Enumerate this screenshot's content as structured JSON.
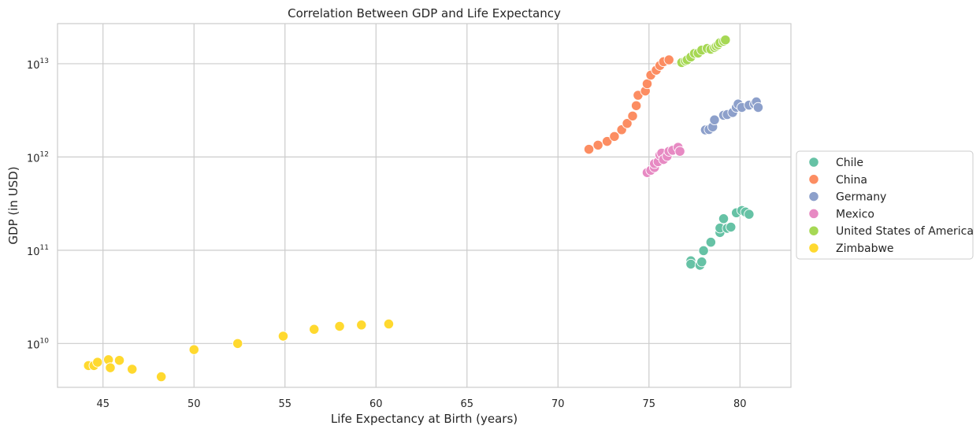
{
  "chart_data": {
    "type": "scatter",
    "title": "Correlation Between GDP and Life Expectancy",
    "xlabel": "Life Expectancy at Birth (years)",
    "ylabel": "GDP (in USD)",
    "xlim": [
      42.5,
      82.8
    ],
    "ylim_log10": [
      9.53,
      13.43
    ],
    "y_scale": "log",
    "grid": true,
    "legend_position": "right",
    "x_ticks": [
      45,
      50,
      55,
      60,
      65,
      70,
      75,
      80
    ],
    "y_ticks": [
      {
        "base": "10",
        "exp": "10",
        "value": 10
      },
      {
        "base": "10",
        "exp": "11",
        "value": 11
      },
      {
        "base": "10",
        "exp": "12",
        "value": 12
      },
      {
        "base": "10",
        "exp": "13",
        "value": 13
      }
    ],
    "series": [
      {
        "name": "Chile",
        "color": "#66c2a5",
        "points": [
          [
            77.3,
            77000000000.0
          ],
          [
            77.3,
            71000000000.0
          ],
          [
            77.8,
            69000000000.0
          ],
          [
            77.9,
            75000000000.0
          ],
          [
            78.0,
            99000000000.0
          ],
          [
            78.4,
            122000000000.0
          ],
          [
            78.9,
            155000000000.0
          ],
          [
            78.9,
            173000000000.0
          ],
          [
            79.1,
            218000000000.0
          ],
          [
            79.3,
            172000000000.0
          ],
          [
            79.5,
            177000000000.0
          ],
          [
            79.8,
            252000000000.0
          ],
          [
            80.1,
            267000000000.0
          ],
          [
            80.3,
            257000000000.0
          ],
          [
            80.5,
            243000000000.0
          ]
        ]
      },
      {
        "name": "China",
        "color": "#fc8d62",
        "points": [
          [
            71.7,
            1210000000000.0
          ],
          [
            72.2,
            1340000000000.0
          ],
          [
            72.7,
            1470000000000.0
          ],
          [
            73.1,
            1660000000000.0
          ],
          [
            73.5,
            1960000000000.0
          ],
          [
            73.8,
            2290000000000.0
          ],
          [
            74.1,
            2750000000000.0
          ],
          [
            74.3,
            3550000000000.0
          ],
          [
            74.4,
            4590000000000.0
          ],
          [
            74.8,
            5100000000000.0
          ],
          [
            74.9,
            6090000000000.0
          ],
          [
            75.1,
            7550000000000.0
          ],
          [
            75.4,
            8530000000000.0
          ],
          [
            75.6,
            9570000000000.0
          ],
          [
            75.8,
            10500000000000.0
          ],
          [
            76.1,
            11000000000000.0
          ]
        ]
      },
      {
        "name": "Germany",
        "color": "#8da0cb",
        "points": [
          [
            78.1,
            1950000000000.0
          ],
          [
            78.3,
            1970000000000.0
          ],
          [
            78.5,
            2100000000000.0
          ],
          [
            78.6,
            2500000000000.0
          ],
          [
            79.1,
            2800000000000.0
          ],
          [
            79.3,
            2850000000000.0
          ],
          [
            79.6,
            3000000000000.0
          ],
          [
            79.8,
            3400000000000.0
          ],
          [
            79.9,
            3700000000000.0
          ],
          [
            80.1,
            3400000000000.0
          ],
          [
            80.5,
            3600000000000.0
          ],
          [
            80.8,
            3700000000000.0
          ],
          [
            80.9,
            3900000000000.0
          ],
          [
            81.0,
            3400000000000.0
          ]
        ]
      },
      {
        "name": "Mexico",
        "color": "#e78ac3",
        "points": [
          [
            74.9,
            680000000000.0
          ],
          [
            75.1,
            720000000000.0
          ],
          [
            75.3,
            770000000000.0
          ],
          [
            75.3,
            850000000000.0
          ],
          [
            75.5,
            890000000000.0
          ],
          [
            75.6,
            1050000000000.0
          ],
          [
            75.7,
            1100000000000.0
          ],
          [
            75.8,
            940000000000.0
          ],
          [
            76.0,
            1020000000000.0
          ],
          [
            76.1,
            1150000000000.0
          ],
          [
            76.3,
            1180000000000.0
          ],
          [
            76.6,
            1270000000000.0
          ],
          [
            76.7,
            1150000000000.0
          ]
        ]
      },
      {
        "name": "United States of America",
        "color": "#a6d854",
        "points": [
          [
            76.8,
            10300000000000.0
          ],
          [
            77.0,
            10700000000000.0
          ],
          [
            77.1,
            11000000000000.0
          ],
          [
            77.3,
            11800000000000.0
          ],
          [
            77.5,
            12900000000000.0
          ],
          [
            77.7,
            13000000000000.0
          ],
          [
            77.9,
            14000000000000.0
          ],
          [
            78.2,
            14600000000000.0
          ],
          [
            78.4,
            14300000000000.0
          ],
          [
            78.6,
            14900000000000.0
          ],
          [
            78.7,
            15400000000000.0
          ],
          [
            78.8,
            16000000000000.0
          ],
          [
            78.9,
            16800000000000.0
          ],
          [
            79.1,
            17400000000000.0
          ],
          [
            79.2,
            18000000000000.0
          ]
        ]
      },
      {
        "name": "Zimbabwe",
        "color": "#ffd92f",
        "points": [
          [
            44.2,
            5800000000.0
          ],
          [
            44.5,
            5800000000.0
          ],
          [
            44.7,
            6300000000.0
          ],
          [
            45.3,
            6700000000.0
          ],
          [
            45.4,
            5500000000.0
          ],
          [
            45.9,
            6600000000.0
          ],
          [
            46.6,
            5300000000.0
          ],
          [
            48.2,
            4400000000.0
          ],
          [
            50.0,
            8600000000.0
          ],
          [
            52.4,
            10000000000.0
          ],
          [
            54.9,
            12000000000.0
          ],
          [
            56.6,
            14200000000.0
          ],
          [
            58.0,
            15300000000.0
          ],
          [
            59.2,
            15800000000.0
          ],
          [
            60.7,
            16200000000.0
          ]
        ]
      }
    ]
  }
}
